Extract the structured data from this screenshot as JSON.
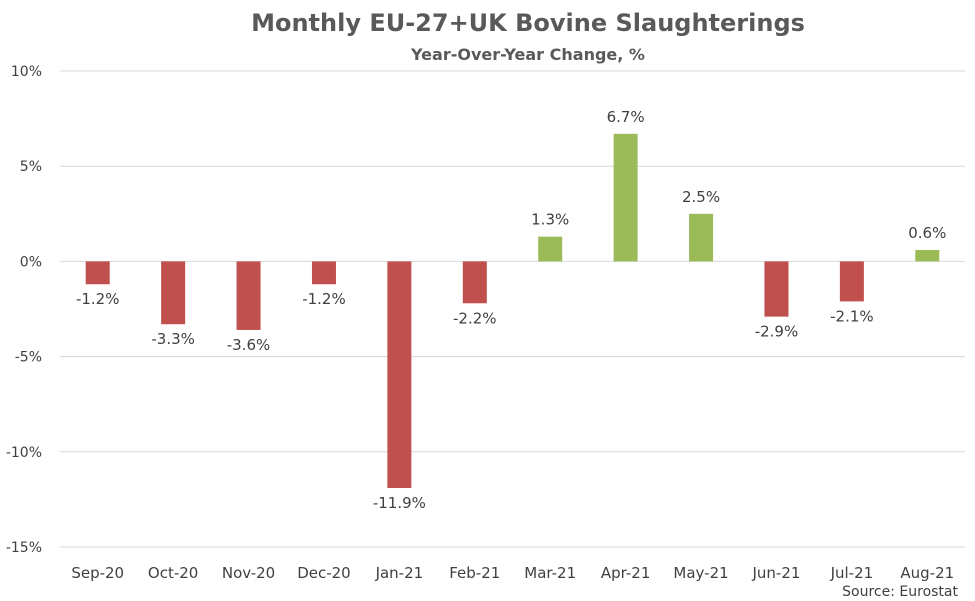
{
  "chart_data": {
    "type": "bar",
    "title": "Monthly EU-27+UK Bovine Slaughterings",
    "subtitle": "Year-Over-Year Change, %",
    "source": "Source: Eurostat",
    "categories": [
      "Sep-20",
      "Oct-20",
      "Nov-20",
      "Dec-20",
      "Jan-21",
      "Feb-21",
      "Mar-21",
      "Apr-21",
      "May-21",
      "Jun-21",
      "Jul-21",
      "Aug-21"
    ],
    "values": [
      -1.2,
      -3.3,
      -3.6,
      -1.2,
      -11.9,
      -2.2,
      1.3,
      6.7,
      2.5,
      -2.9,
      -2.1,
      0.6
    ],
    "data_labels": [
      "-1.2%",
      "-3.3%",
      "-3.6%",
      "-1.2%",
      "-11.9%",
      "-2.2%",
      "1.3%",
      "6.7%",
      "2.5%",
      "-2.9%",
      "-2.1%",
      "0.6%"
    ],
    "ylim": [
      -15,
      10
    ],
    "yticks": [
      10,
      5,
      0,
      -5,
      -10,
      -15
    ],
    "ytick_labels": [
      "10%",
      "5%",
      "0%",
      "-5%",
      "-10%",
      "-15%"
    ],
    "xlabel": "",
    "ylabel": "",
    "grid": true,
    "legend": "none",
    "colors": {
      "positive": "#9bbb59",
      "negative": "#c0504d",
      "grid": "#d9d9d9",
      "text": "#404040",
      "title": "#595959"
    }
  }
}
